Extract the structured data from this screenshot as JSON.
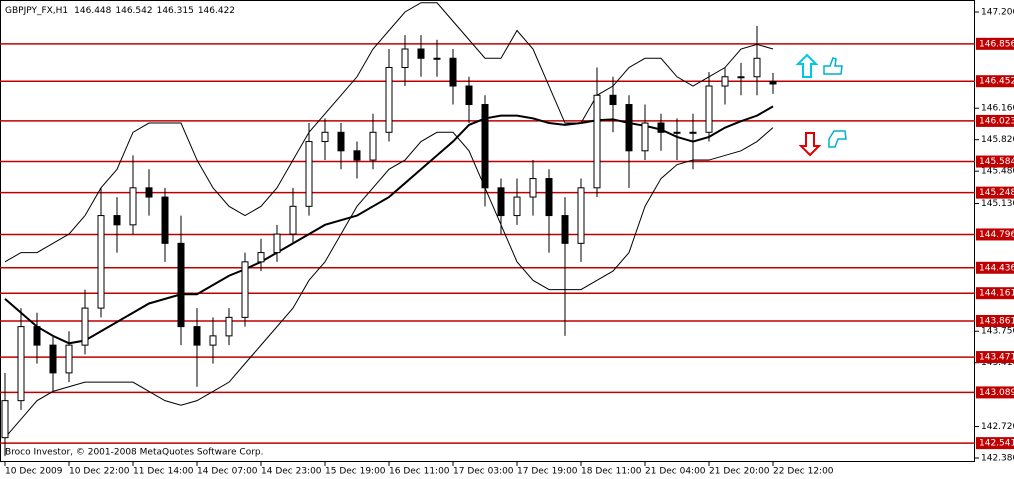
{
  "chart_data": {
    "type": "candlestick",
    "symbol": "GBPJPY_FX,H1",
    "footer": "Broco Investor, © 2001-2008 MetaQuotes Software Corp.",
    "x_labels": [
      "10 Dec 2009",
      "10 Dec 22:00",
      "11 Dec 14:00",
      "14 Dec 07:00",
      "14 Dec 23:00",
      "15 Dec 19:00",
      "16 Dec 11:00",
      "17 Dec 03:00",
      "17 Dec 19:00",
      "18 Dec 11:00",
      "21 Dec 04:00",
      "21 Dec 20:00",
      "22 Dec 12:00"
    ],
    "open": [
      142.6,
      143.0,
      143.8,
      143.6,
      143.3,
      143.6,
      144.0,
      145.0,
      144.9,
      145.3,
      145.2,
      144.7,
      143.8,
      143.6,
      143.7,
      143.9,
      144.5,
      144.6,
      144.8,
      145.1,
      145.8,
      145.9,
      145.7,
      145.6,
      145.9,
      146.6,
      146.8,
      146.7,
      146.7,
      146.4,
      146.2,
      145.3,
      145.0,
      145.2,
      145.4,
      145.0,
      144.7,
      145.3,
      146.3,
      146.2,
      145.7,
      146.0,
      145.9,
      145.9,
      145.9,
      146.4,
      146.5,
      146.5,
      146.448
    ],
    "high": [
      143.3,
      144.0,
      143.95,
      143.7,
      143.75,
      144.2,
      145.3,
      145.2,
      145.65,
      145.5,
      145.3,
      145.0,
      144.0,
      143.9,
      144.0,
      144.6,
      144.75,
      144.9,
      145.3,
      146.0,
      146.05,
      146.0,
      145.8,
      146.1,
      146.8,
      146.95,
      146.95,
      146.9,
      146.8,
      146.5,
      146.3,
      145.4,
      145.4,
      145.6,
      145.5,
      145.2,
      145.4,
      146.6,
      146.5,
      146.3,
      146.2,
      146.1,
      146.05,
      146.1,
      146.55,
      146.6,
      146.65,
      147.05,
      146.542
    ],
    "low": [
      142.4,
      142.9,
      143.4,
      143.1,
      143.2,
      143.5,
      143.9,
      144.6,
      144.8,
      145.0,
      144.5,
      143.6,
      143.15,
      143.4,
      143.6,
      143.8,
      144.4,
      144.5,
      144.7,
      145.0,
      145.6,
      145.5,
      145.4,
      145.5,
      145.8,
      146.4,
      146.5,
      146.5,
      146.2,
      146.0,
      145.1,
      144.8,
      144.9,
      145.0,
      144.6,
      143.7,
      144.5,
      145.2,
      145.9,
      145.3,
      145.6,
      145.7,
      145.6,
      145.5,
      145.8,
      146.2,
      146.3,
      146.3,
      146.315
    ],
    "close": [
      143.0,
      143.8,
      143.6,
      143.3,
      143.6,
      144.0,
      145.0,
      144.9,
      145.3,
      145.2,
      144.7,
      143.8,
      143.6,
      143.7,
      143.9,
      144.5,
      144.6,
      144.8,
      145.1,
      145.8,
      145.9,
      145.7,
      145.6,
      145.9,
      146.6,
      146.8,
      146.7,
      146.7,
      146.4,
      146.2,
      145.3,
      145.0,
      145.2,
      145.4,
      145.0,
      144.7,
      145.3,
      146.3,
      146.2,
      145.7,
      146.0,
      145.9,
      145.9,
      145.9,
      146.4,
      146.5,
      146.5,
      146.7,
      146.422
    ],
    "ma": [
      144.1,
      143.95,
      143.8,
      143.7,
      143.62,
      143.65,
      143.75,
      143.85,
      143.95,
      144.05,
      144.1,
      144.15,
      144.15,
      144.25,
      144.35,
      144.42,
      144.5,
      144.6,
      144.7,
      144.8,
      144.9,
      144.95,
      145.0,
      145.1,
      145.2,
      145.35,
      145.5,
      145.65,
      145.8,
      145.98,
      146.05,
      146.08,
      146.08,
      146.05,
      146.0,
      145.98,
      146.0,
      146.03,
      146.04,
      146.0,
      145.97,
      145.93,
      145.85,
      145.8,
      145.85,
      145.95,
      146.02,
      146.08,
      146.18
    ],
    "bb_upper": [
      144.5,
      144.6,
      144.6,
      144.7,
      144.8,
      145.0,
      145.3,
      145.5,
      145.9,
      146.0,
      146.0,
      146.0,
      145.6,
      145.3,
      145.1,
      145.0,
      145.1,
      145.3,
      145.6,
      145.9,
      146.1,
      146.3,
      146.5,
      146.8,
      147.0,
      147.2,
      147.3,
      147.3,
      147.1,
      146.9,
      146.7,
      146.7,
      147.0,
      146.8,
      146.4,
      146.0,
      146.0,
      146.3,
      146.4,
      146.6,
      146.7,
      146.7,
      146.5,
      146.4,
      146.5,
      146.6,
      146.8,
      146.85,
      146.8
    ],
    "bb_lower": [
      142.6,
      142.8,
      143.0,
      143.1,
      143.15,
      143.2,
      143.2,
      143.2,
      143.2,
      143.1,
      143.0,
      142.95,
      143.0,
      143.1,
      143.2,
      143.4,
      143.6,
      143.8,
      144.0,
      144.3,
      144.5,
      144.8,
      145.1,
      145.3,
      145.5,
      145.6,
      145.8,
      145.9,
      145.9,
      145.7,
      145.3,
      144.9,
      144.5,
      144.3,
      144.2,
      144.2,
      144.2,
      144.3,
      144.4,
      144.6,
      145.1,
      145.4,
      145.55,
      145.6,
      145.6,
      145.65,
      145.7,
      145.8,
      145.95
    ],
    "levels": [
      146.856,
      146.452,
      146.023,
      145.584,
      145.248,
      144.796,
      144.436,
      144.161,
      143.861,
      143.471,
      143.089,
      142.541
    ],
    "level_color": "#c00000",
    "candle_color": "#000000",
    "indicator_color": "#000000",
    "ylim": [
      142.337,
      147.308
    ],
    "yticks": [
      {
        "value": 147.2,
        "label": "147.200"
      },
      {
        "value": 146.16,
        "label": "146.160"
      },
      {
        "value": 145.82,
        "label": "145.820"
      },
      {
        "value": 145.48,
        "label": "145.480"
      },
      {
        "value": 145.13,
        "label": "145.130"
      },
      {
        "value": 143.75,
        "label": "143.750"
      },
      {
        "value": 143.41,
        "label": "143.410"
      },
      {
        "value": 142.72,
        "label": "142.720"
      },
      {
        "value": 142.38,
        "label": "142.380"
      }
    ]
  }
}
